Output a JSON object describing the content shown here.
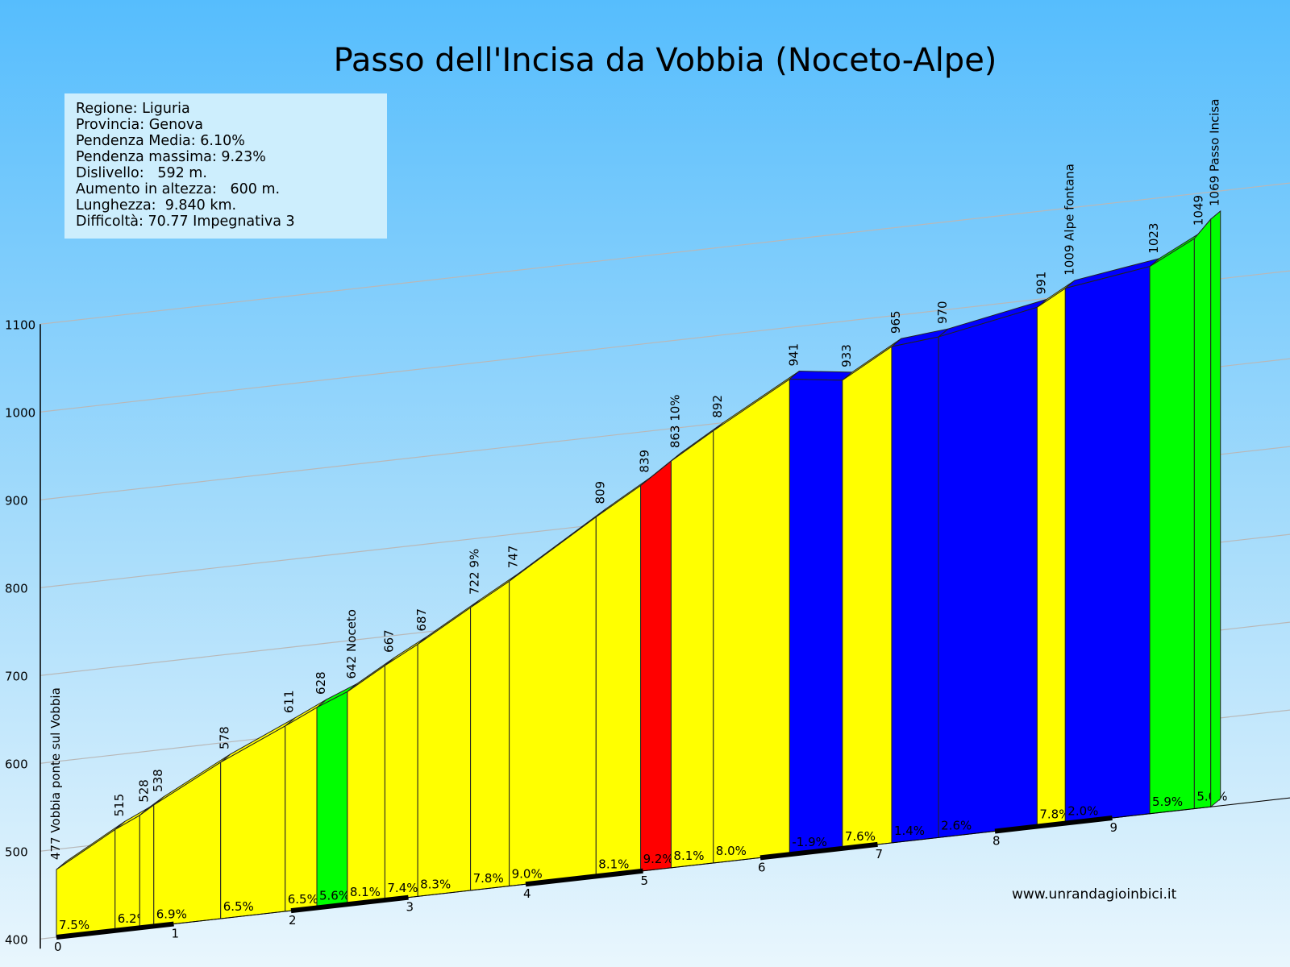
{
  "title": "Passo dell'Incisa da Vobbia (Noceto-Alpe)",
  "info": [
    "Regione: Liguria",
    "Provincia: Genova",
    "Pendenza Media: 6.10%",
    "Pendenza massima: 9.23%",
    "Dislivello:   592 m.",
    "Aumento in altezza:   600 m.",
    "Lunghezza:  9.840 km.",
    "Difficoltà: 70.77 Impegnativa 3"
  ],
  "website": "www.unrandagioinbici.it",
  "colors": {
    "yellow": "#ffff00",
    "green": "#00ff00",
    "red": "#ff0000",
    "blue": "#0000ff"
  },
  "chart_data": {
    "type": "area",
    "ylim": [
      400,
      1100
    ],
    "xlim": [
      0,
      9.84
    ],
    "y_ticks": [
      "400",
      "500",
      "600",
      "700",
      "800",
      "900",
      "1000",
      "1100"
    ],
    "x_ticks": [
      "0",
      "1",
      "2",
      "3",
      "4",
      "5",
      "6",
      "7",
      "8",
      "9"
    ],
    "points": [
      {
        "x": 0.0,
        "y": 477,
        "label": "477 Vobbia ponte sul Vobbia"
      },
      {
        "x": 0.5,
        "y": 515,
        "label": "515"
      },
      {
        "x": 0.71,
        "y": 528,
        "label": "528"
      },
      {
        "x": 0.83,
        "y": 538,
        "label": "538"
      },
      {
        "x": 1.4,
        "y": 578,
        "label": "578"
      },
      {
        "x": 1.95,
        "y": 611,
        "label": "611"
      },
      {
        "x": 2.22,
        "y": 628,
        "label": "628"
      },
      {
        "x": 2.48,
        "y": 642,
        "label": "642 Noceto"
      },
      {
        "x": 2.8,
        "y": 667,
        "label": "667"
      },
      {
        "x": 3.08,
        "y": 687,
        "label": "687"
      },
      {
        "x": 3.53,
        "y": 722,
        "label": "722 9%"
      },
      {
        "x": 3.86,
        "y": 747,
        "label": "747"
      },
      {
        "x": 4.6,
        "y": 809,
        "label": "809"
      },
      {
        "x": 4.98,
        "y": 839,
        "label": "839"
      },
      {
        "x": 5.24,
        "y": 863,
        "label": "863 10%"
      },
      {
        "x": 5.6,
        "y": 892,
        "label": "892"
      },
      {
        "x": 6.25,
        "y": 941,
        "label": "941"
      },
      {
        "x": 6.7,
        "y": 933,
        "label": "933"
      },
      {
        "x": 7.12,
        "y": 965,
        "label": "965"
      },
      {
        "x": 7.52,
        "y": 970,
        "label": "970"
      },
      {
        "x": 8.36,
        "y": 991,
        "label": "991"
      },
      {
        "x": 8.6,
        "y": 1009,
        "label": "1009 Alpe fontana"
      },
      {
        "x": 9.32,
        "y": 1023,
        "label": "1023"
      },
      {
        "x": 9.7,
        "y": 1049,
        "label": "1049"
      },
      {
        "x": 9.84,
        "y": 1069,
        "label": "1069 Passo Incisa"
      }
    ],
    "segments": [
      {
        "grade": "7.5%",
        "color": "yellow"
      },
      {
        "grade": "6.2%",
        "color": "yellow"
      },
      {
        "grade": "",
        "color": "yellow"
      },
      {
        "grade": "6.9%",
        "color": "yellow"
      },
      {
        "grade": "6.5%",
        "color": "yellow"
      },
      {
        "grade": "6.5%",
        "color": "yellow"
      },
      {
        "grade": "5.6%",
        "color": "green"
      },
      {
        "grade": "8.1%",
        "color": "yellow"
      },
      {
        "grade": "7.4%",
        "color": "yellow"
      },
      {
        "grade": "8.3%",
        "color": "yellow"
      },
      {
        "grade": "7.8%",
        "color": "yellow"
      },
      {
        "grade": "9.0%",
        "color": "yellow"
      },
      {
        "grade": "8.1%",
        "color": "yellow"
      },
      {
        "grade": "9.2%",
        "color": "red"
      },
      {
        "grade": "8.1%",
        "color": "yellow"
      },
      {
        "grade": "8.0%",
        "color": "yellow"
      },
      {
        "grade": "-1.9%",
        "color": "blue"
      },
      {
        "grade": "7.6%",
        "color": "yellow"
      },
      {
        "grade": "1.4%",
        "color": "blue"
      },
      {
        "grade": "2.6%",
        "color": "blue"
      },
      {
        "grade": "7.8%",
        "color": "yellow"
      },
      {
        "grade": "2.0%",
        "color": "blue"
      },
      {
        "grade": "5.9%",
        "color": "green"
      },
      {
        "grade": "5.0%",
        "color": "green"
      }
    ]
  }
}
